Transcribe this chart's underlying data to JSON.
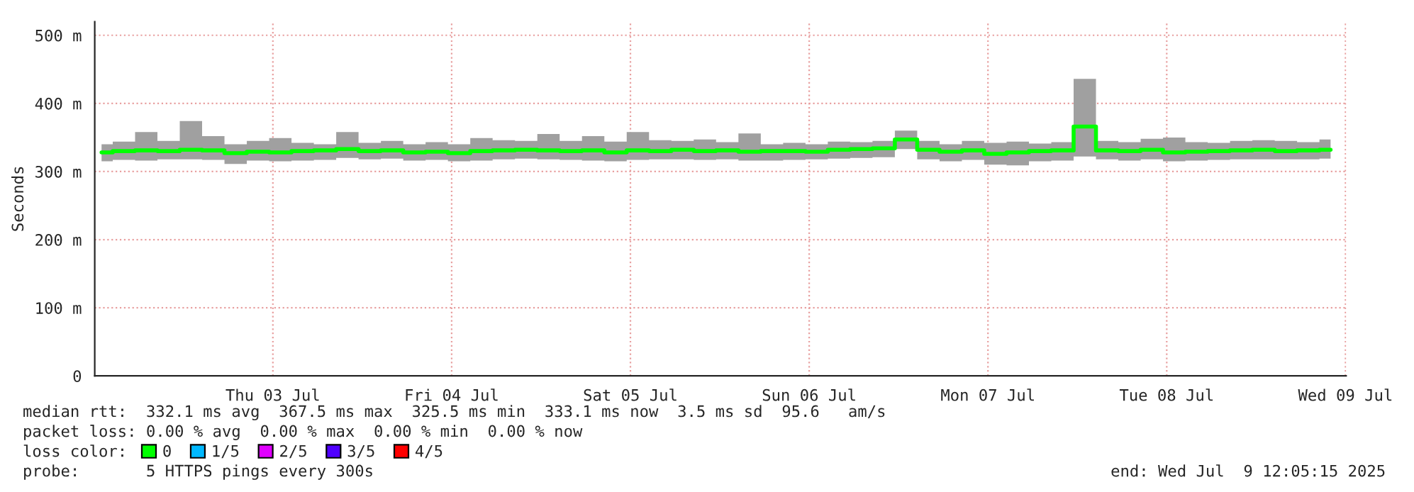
{
  "chart_data": {
    "type": "step",
    "ylabel": "Seconds",
    "x": [
      "2025-07-02T13:00",
      "2025-07-02T16:00",
      "2025-07-02T19:00",
      "2025-07-02T22:00",
      "2025-07-03T01:00",
      "2025-07-03T04:00",
      "2025-07-03T07:00",
      "2025-07-03T10:00",
      "2025-07-03T13:00",
      "2025-07-03T16:00",
      "2025-07-03T19:00",
      "2025-07-03T22:00",
      "2025-07-04T01:00",
      "2025-07-04T04:00",
      "2025-07-04T07:00",
      "2025-07-04T10:00",
      "2025-07-04T13:00",
      "2025-07-04T16:00",
      "2025-07-04T19:00",
      "2025-07-04T22:00",
      "2025-07-05T01:00",
      "2025-07-05T04:00",
      "2025-07-05T07:00",
      "2025-07-05T10:00",
      "2025-07-05T13:00",
      "2025-07-05T16:00",
      "2025-07-05T19:00",
      "2025-07-05T22:00",
      "2025-07-06T01:00",
      "2025-07-06T04:00",
      "2025-07-06T07:00",
      "2025-07-06T10:00",
      "2025-07-06T13:00",
      "2025-07-06T16:00",
      "2025-07-06T19:00",
      "2025-07-06T22:00",
      "2025-07-07T01:00",
      "2025-07-07T04:00",
      "2025-07-07T07:00",
      "2025-07-07T10:00",
      "2025-07-07T13:00",
      "2025-07-07T16:00",
      "2025-07-07T19:00",
      "2025-07-07T22:00",
      "2025-07-08T01:00",
      "2025-07-08T04:00",
      "2025-07-08T07:00",
      "2025-07-08T10:00",
      "2025-07-08T13:00",
      "2025-07-08T16:00",
      "2025-07-08T19:00",
      "2025-07-08T22:00",
      "2025-07-09T01:00",
      "2025-07-09T04:00",
      "2025-07-09T07:00",
      "2025-07-09T10:00"
    ],
    "series": [
      {
        "name": "0",
        "color": "#00ff00",
        "values": [
          328,
          330,
          331,
          330,
          332,
          331,
          327,
          329,
          328,
          330,
          331,
          333,
          330,
          331,
          328,
          329,
          327,
          330,
          331,
          332,
          331,
          330,
          331,
          328,
          331,
          330,
          332,
          330,
          331,
          329,
          330,
          330,
          329,
          332,
          333,
          334,
          347,
          332,
          329,
          331,
          326,
          328,
          330,
          331,
          366,
          331,
          330,
          332,
          328,
          329,
          330,
          331,
          332,
          330,
          331,
          332
        ],
        "lower": [
          315,
          317,
          316,
          318,
          318,
          317,
          311,
          316,
          315,
          316,
          317,
          320,
          318,
          319,
          316,
          317,
          315,
          316,
          318,
          319,
          318,
          317,
          316,
          315,
          317,
          318,
          318,
          317,
          318,
          316,
          316,
          317,
          318,
          319,
          320,
          321,
          333,
          318,
          315,
          317,
          310,
          309,
          315,
          316,
          322,
          318,
          316,
          318,
          315,
          316,
          317,
          318,
          318,
          318,
          318,
          319
        ],
        "upper": [
          340,
          344,
          358,
          345,
          374,
          352,
          340,
          345,
          349,
          342,
          340,
          358,
          342,
          345,
          340,
          343,
          340,
          349,
          346,
          345,
          355,
          345,
          352,
          344,
          358,
          346,
          345,
          347,
          343,
          356,
          340,
          342,
          340,
          344,
          343,
          345,
          360,
          345,
          340,
          345,
          342,
          344,
          341,
          343,
          436,
          345,
          343,
          348,
          350,
          343,
          342,
          345,
          346,
          345,
          343,
          347
        ]
      },
      {
        "name": "1/5",
        "color": "#00b8ff",
        "values": [
          null,
          null,
          null,
          null,
          null,
          null,
          null,
          null,
          null,
          null,
          null,
          null,
          null,
          null,
          null,
          null,
          null,
          null,
          null,
          null,
          null,
          null,
          null,
          null,
          null,
          null,
          null,
          null,
          null,
          null,
          null,
          null,
          null,
          null,
          null,
          null,
          null,
          null,
          null,
          null,
          null,
          null,
          null,
          null,
          null,
          null,
          null,
          null,
          null,
          null,
          null,
          null,
          null,
          null,
          null,
          null
        ]
      },
      {
        "name": "2/5",
        "color": "#e000ff",
        "values": [
          null,
          null,
          null,
          null,
          null,
          null,
          null,
          null,
          null,
          null,
          null,
          null,
          null,
          null,
          null,
          null,
          null,
          null,
          null,
          null,
          null,
          null,
          null,
          null,
          null,
          null,
          null,
          null,
          null,
          null,
          null,
          null,
          null,
          null,
          null,
          null,
          null,
          null,
          null,
          null,
          null,
          null,
          null,
          null,
          null,
          null,
          null,
          null,
          null,
          null,
          null,
          null,
          null,
          null,
          null,
          null
        ]
      },
      {
        "name": "3/5",
        "color": "#5000ff",
        "values": [
          null,
          null,
          null,
          null,
          null,
          null,
          null,
          null,
          null,
          null,
          null,
          null,
          null,
          null,
          null,
          null,
          null,
          null,
          null,
          null,
          null,
          null,
          null,
          null,
          null,
          null,
          null,
          null,
          null,
          null,
          null,
          null,
          null,
          null,
          null,
          null,
          null,
          null,
          null,
          null,
          null,
          null,
          null,
          null,
          null,
          null,
          null,
          null,
          null,
          null,
          null,
          null,
          null,
          null,
          null,
          null
        ]
      },
      {
        "name": "4/5",
        "color": "#ff0000",
        "values": [
          null,
          null,
          null,
          null,
          null,
          null,
          null,
          null,
          null,
          null,
          null,
          null,
          null,
          null,
          null,
          null,
          null,
          null,
          null,
          null,
          null,
          null,
          null,
          null,
          null,
          null,
          null,
          null,
          null,
          null,
          null,
          null,
          null,
          null,
          null,
          null,
          null,
          null,
          null,
          null,
          null,
          null,
          null,
          null,
          null,
          null,
          null,
          null,
          null,
          null,
          null,
          null,
          null,
          null,
          null,
          null
        ]
      }
    ],
    "legend": "bottom",
    "legend_title": "loss color:",
    "xlim": [
      "2025-07-02T12:05",
      "2025-07-09T12:05"
    ],
    "xticks": [
      {
        "value": "2025-07-03T12:00",
        "label": "Thu 03 Jul"
      },
      {
        "value": "2025-07-04T12:00",
        "label": "Fri 04 Jul"
      },
      {
        "value": "2025-07-05T12:00",
        "label": "Sat 05 Jul"
      },
      {
        "value": "2025-07-06T12:00",
        "label": "Sun 06 Jul"
      },
      {
        "value": "2025-07-07T12:00",
        "label": "Mon 07 Jul"
      },
      {
        "value": "2025-07-08T12:00",
        "label": "Tue 08 Jul"
      },
      {
        "value": "2025-07-09T12:00",
        "label": "Wed 09 Jul"
      }
    ],
    "ylim": [
      0,
      520
    ],
    "yticks": [
      0,
      {
        "value": 100,
        "label": "100 m"
      },
      {
        "value": 200,
        "label": "200 m"
      },
      {
        "value": 300,
        "label": "300 m"
      },
      {
        "value": 400,
        "label": "400 m"
      },
      {
        "value": 500,
        "label": "500 m"
      }
    ],
    "grid": true,
    "annotations": [
      "median rtt:  332.1 ms avg  367.5 ms max  325.5 ms min  333.1 ms now  3.5 ms sd  95.6   am/s",
      "packet loss: 0.00 % avg  0.00 % max  0.00 % min  0.00 % now",
      "probe:       5 HTTPS pings every 300s",
      "end: Wed Jul  9 12:05:15 2025"
    ]
  }
}
